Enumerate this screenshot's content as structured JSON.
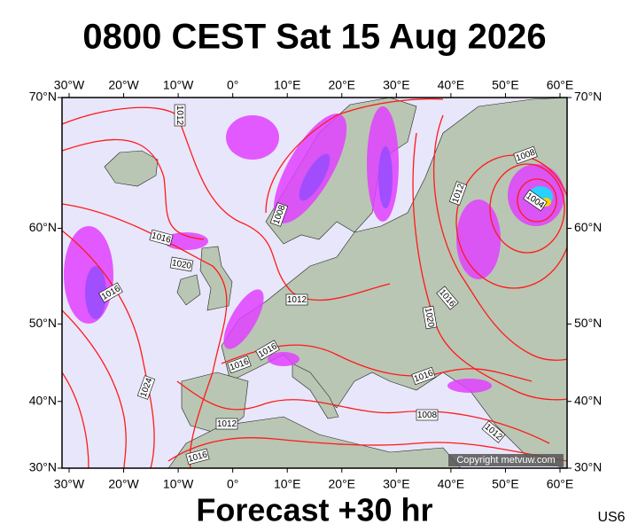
{
  "title": "0800 CEST Sat 15 Aug 2026",
  "longitude_ticks": [
    {
      "value": -30,
      "label": "30°W"
    },
    {
      "value": -20,
      "label": "20°W"
    },
    {
      "value": -10,
      "label": "10°W"
    },
    {
      "value": 0,
      "label": "0°"
    },
    {
      "value": 10,
      "label": "10°E"
    },
    {
      "value": 20,
      "label": "20°E"
    },
    {
      "value": 30,
      "label": "30°E"
    },
    {
      "value": 40,
      "label": "40°E"
    },
    {
      "value": 50,
      "label": "50°E"
    },
    {
      "value": 60,
      "label": "60°E"
    }
  ],
  "latitude_ticks": [
    {
      "value": 70,
      "label": "70°N"
    },
    {
      "value": 60,
      "label": "60°N"
    },
    {
      "value": 50,
      "label": "50°N"
    },
    {
      "value": 40,
      "label": "40°N"
    },
    {
      "value": 30,
      "label": "30°N"
    }
  ],
  "isobar_labels": [
    "1012",
    "1016",
    "1020",
    "1016",
    "1012",
    "1008",
    "1008",
    "1012",
    "1004",
    "1016",
    "1020",
    "1024",
    "1016",
    "1016",
    "1016",
    "1008",
    "1012",
    "1012",
    "1016"
  ],
  "copyright": "Copyright metvuw.com",
  "forecast": "Forecast +30 hr",
  "model": "US6"
}
